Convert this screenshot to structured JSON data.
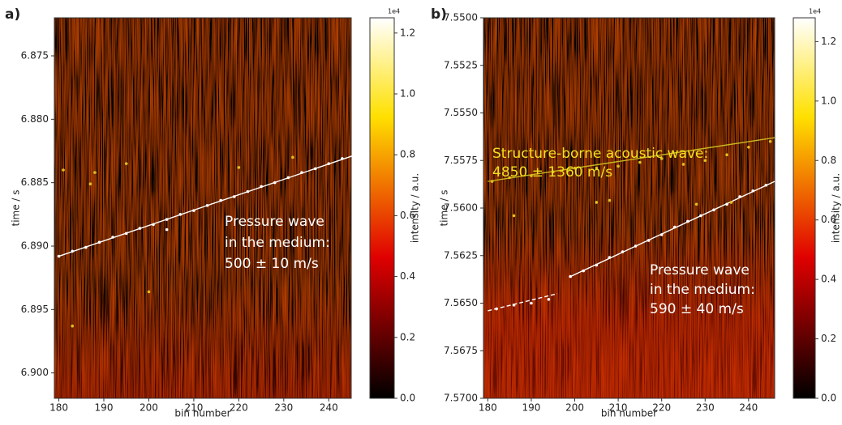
{
  "chart_data": [
    {
      "type": "scatter",
      "panel_label": "a)",
      "xlabel": "bin number",
      "ylabel": "time / s",
      "xlim": [
        179,
        245
      ],
      "xticks": [
        180,
        190,
        200,
        210,
        220,
        230,
        240
      ],
      "ylim": [
        6.872,
        6.902
      ],
      "invert_y": true,
      "yticks": [
        6.875,
        {
          "value": 6.88,
          "label": "6.880"
        },
        6.885,
        {
          "value": 6.89,
          "label": "6.890"
        },
        6.895,
        {
          "value": 6.9,
          "label": "6.900"
        }
      ],
      "points": [
        {
          "color": "#ffffff",
          "x": [
            180,
            183,
            186,
            189,
            192,
            195,
            198,
            201,
            204,
            207,
            210,
            213,
            216,
            219,
            222,
            225,
            228,
            231,
            234,
            237,
            240,
            243,
            246,
            204
          ],
          "y": [
            6.8908,
            6.8904,
            6.8901,
            6.8897,
            6.8893,
            6.889,
            6.8886,
            6.8883,
            6.8879,
            6.8875,
            6.8872,
            6.8868,
            6.8864,
            6.8861,
            6.8857,
            6.8853,
            6.885,
            6.8846,
            6.8842,
            6.8839,
            6.8835,
            6.8831,
            6.8828,
            6.8887
          ]
        },
        {
          "color": "#e0c020",
          "x": [
            181,
            188,
            195,
            220,
            232,
            200,
            183,
            187
          ],
          "y": [
            6.884,
            6.8842,
            6.8835,
            6.8838,
            6.883,
            6.8936,
            6.8963,
            6.8851
          ]
        }
      ],
      "fits": [
        {
          "color": "#ffffff",
          "dashed": false,
          "x": [
            180,
            246
          ],
          "y": [
            6.8908,
            6.8828
          ]
        }
      ],
      "annotations": [
        {
          "color": "#ffffff",
          "lines": [
            "Pressure wave",
            "in the medium:",
            "500 ± 10 m/s"
          ]
        }
      ],
      "colorbar": {
        "label": "intensity / a.u.",
        "multiplier": "1e4",
        "clim": [
          0,
          1.25
        ],
        "ticks": [
          {
            "value": 0,
            "label": "0.0"
          },
          0.2,
          0.4,
          0.6,
          0.8,
          {
            "value": 1,
            "label": "1.0"
          },
          1.2
        ]
      }
    },
    {
      "type": "scatter",
      "panel_label": "b)",
      "xlabel": "bin number",
      "ylabel": "time / s",
      "xlim": [
        179,
        246
      ],
      "xticks": [
        180,
        190,
        200,
        210,
        220,
        230,
        240
      ],
      "ylim": [
        7.55,
        7.57
      ],
      "invert_y": true,
      "yticks": [
        {
          "value": 7.55,
          "label": "7.5500"
        },
        7.5525,
        {
          "value": 7.555,
          "label": "7.5550"
        },
        7.5575,
        {
          "value": 7.56,
          "label": "7.5600"
        },
        7.5625,
        {
          "value": 7.565,
          "label": "7.5650"
        },
        7.5675,
        {
          "value": 7.57,
          "label": "7.5700"
        }
      ],
      "points": [
        {
          "color": "#ffffff",
          "x": [
            199,
            202,
            205,
            208,
            211,
            214,
            217,
            220,
            223,
            226,
            229,
            232,
            235,
            238,
            241,
            244,
            182,
            186,
            190,
            194
          ],
          "y": [
            7.5636,
            7.5633,
            7.563,
            7.5626,
            7.5623,
            7.562,
            7.5617,
            7.5614,
            7.561,
            7.5607,
            7.5604,
            7.5601,
            7.5598,
            7.5594,
            7.5591,
            7.5588,
            7.5653,
            7.5651,
            7.565,
            7.5648
          ]
        },
        {
          "color": "#e0c020",
          "x": [
            181,
            185,
            190,
            195,
            200,
            205,
            210,
            215,
            220,
            225,
            230,
            235,
            240,
            245,
            205,
            208,
            186,
            228,
            236
          ],
          "y": [
            7.5586,
            7.5584,
            7.5583,
            7.5581,
            7.5579,
            7.5579,
            7.5578,
            7.5576,
            7.5574,
            7.5577,
            7.5575,
            7.5572,
            7.5568,
            7.5565,
            7.5597,
            7.5596,
            7.5604,
            7.5598,
            7.5597
          ]
        }
      ],
      "fits": [
        {
          "color": "#c8b820",
          "dashed": false,
          "x": [
            180,
            246
          ],
          "y": [
            7.5586,
            7.5563
          ]
        },
        {
          "color": "#ffffff",
          "dashed": false,
          "x": [
            199,
            246
          ],
          "y": [
            7.5636,
            7.5586
          ]
        },
        {
          "color": "#ffffff",
          "dashed": true,
          "x": [
            180,
            196
          ],
          "y": [
            7.5654,
            7.5645
          ]
        }
      ],
      "annotations": [
        {
          "color": "#f0e020",
          "lines": [
            "Structure-borne acoustic wave:",
            "4850 ± 1360 m/s"
          ]
        },
        {
          "color": "#ffffff",
          "lines": [
            "Pressure wave",
            "in the medium:",
            "590 ± 40 m/s"
          ]
        }
      ],
      "colorbar": {
        "label": "intensity / a.u.",
        "multiplier": "1e4",
        "clim": [
          0,
          1.28
        ],
        "ticks": [
          {
            "value": 0,
            "label": "0.0"
          },
          0.2,
          0.4,
          0.6,
          0.8,
          {
            "value": 1,
            "label": "1.0"
          },
          1.2
        ]
      }
    }
  ]
}
